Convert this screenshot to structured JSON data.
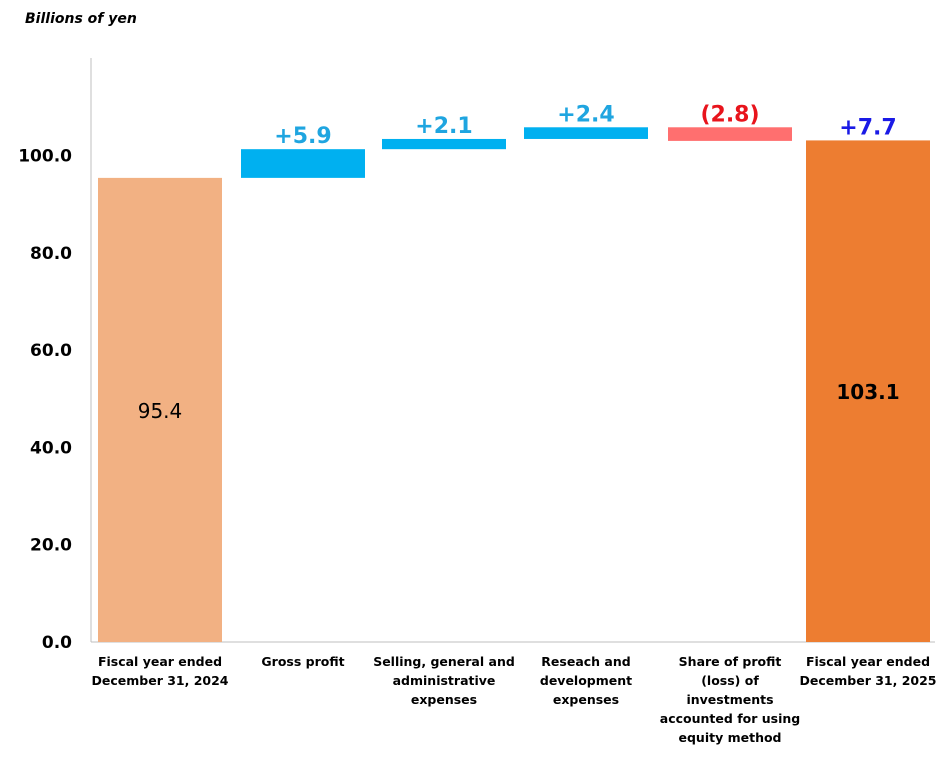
{
  "chart_data": {
    "type": "waterfall",
    "unit_label": "Billions of yen",
    "ylim": [
      0,
      120
    ],
    "y_ticks": [
      "0.0",
      "20.0",
      "40.0",
      "60.0",
      "80.0",
      "100.0"
    ],
    "y_tick_values": [
      0,
      20,
      40,
      60,
      80,
      100
    ],
    "grid": false,
    "categories": [
      [
        "Fiscal year ended",
        "December 31, 2024"
      ],
      [
        "Gross profit"
      ],
      [
        "Selling, general and",
        "administrative",
        "expenses"
      ],
      [
        "Reseach and",
        "development",
        "expenses"
      ],
      [
        "Share of profit",
        "(loss) of",
        "investments",
        "accounted for using",
        "equity method"
      ],
      [
        "Fiscal year ended",
        "December 31, 2025"
      ]
    ],
    "bars": [
      {
        "kind": "total",
        "start": 0,
        "end": 95.4,
        "label": "95.4",
        "label_color": "#000000",
        "color": "#f2b183"
      },
      {
        "kind": "delta",
        "start": 95.4,
        "end": 101.3,
        "label": "+5.9",
        "label_color": "#1fa5e0",
        "color": "#00b0f0"
      },
      {
        "kind": "delta",
        "start": 101.3,
        "end": 103.4,
        "label": "+2.1",
        "label_color": "#1fa5e0",
        "color": "#00b0f0"
      },
      {
        "kind": "delta",
        "start": 103.4,
        "end": 105.8,
        "label": "+2.4",
        "label_color": "#1fa5e0",
        "color": "#00b0f0"
      },
      {
        "kind": "delta",
        "start": 105.8,
        "end": 103.0,
        "label": "(2.8)",
        "label_color": "#e8141c",
        "color": "#ff6f6f"
      },
      {
        "kind": "total",
        "start": 0,
        "end": 103.1,
        "label": "103.1",
        "label_color": "#000000",
        "color": "#ed7d31"
      }
    ],
    "total_change_label": "+7.7",
    "total_change_color": "#1a1ae6"
  }
}
